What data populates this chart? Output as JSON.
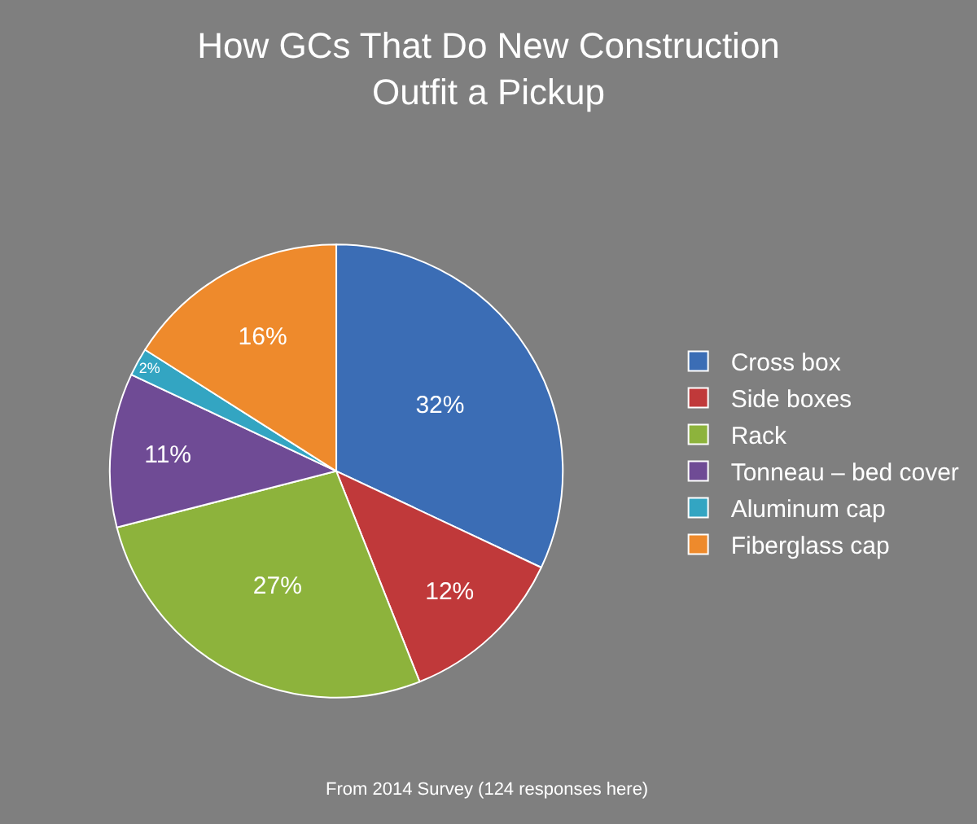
{
  "chart_data": {
    "type": "pie",
    "title": "How GCs That Do New Construction\nOutfit a Pickup",
    "categories": [
      "Cross box",
      "Side boxes",
      "Rack",
      "Tonneau – bed cover",
      "Aluminum cap",
      "Fiberglass cap"
    ],
    "values": [
      32,
      12,
      27,
      11,
      2,
      16
    ],
    "value_labels": [
      "32%",
      "12%",
      "27%",
      "11%",
      "2%",
      "16%"
    ],
    "colors": [
      "#3b6db5",
      "#c0393a",
      "#8db33c",
      "#6f4b95",
      "#33a5c2",
      "#ee8a2c"
    ],
    "legend": "right",
    "annotations": [
      "From 2014 Survey (124 responses here)"
    ]
  }
}
